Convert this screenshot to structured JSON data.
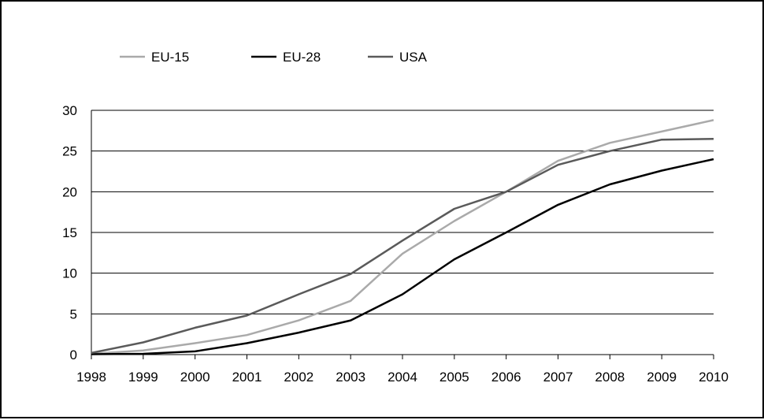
{
  "chart_data": {
    "type": "line",
    "title": "",
    "xlabel": "",
    "ylabel": "",
    "x": [
      1998,
      1999,
      2000,
      2001,
      2002,
      2003,
      2004,
      2005,
      2006,
      2007,
      2008,
      2009,
      2010
    ],
    "x_tick_labels": [
      "1998",
      "1999",
      "2000",
      "2001",
      "2002",
      "2003",
      "2004",
      "2005",
      "2006",
      "2007",
      "2008",
      "2009",
      "2010"
    ],
    "y_tick_labels": [
      "0",
      "5",
      "10",
      "15",
      "20",
      "25",
      "30"
    ],
    "ylim": [
      0,
      30
    ],
    "grid": "horizontal",
    "legend_position": "top-left",
    "series": [
      {
        "name": "EU-15",
        "color": "#aaaaaa",
        "values": [
          0.1,
          0.5,
          1.4,
          2.4,
          4.2,
          6.6,
          12.4,
          16.4,
          20.0,
          23.8,
          26.0,
          27.4,
          28.8
        ]
      },
      {
        "name": "EU-28",
        "color": "#000000",
        "values": [
          0.05,
          0.1,
          0.4,
          1.4,
          2.7,
          4.2,
          7.4,
          11.7,
          15.0,
          18.4,
          20.9,
          22.6,
          24.0
        ]
      },
      {
        "name": "USA",
        "color": "#5a5a5a",
        "values": [
          0.2,
          1.5,
          3.3,
          4.8,
          7.4,
          9.9,
          14.0,
          17.9,
          20.0,
          23.3,
          25.0,
          26.4,
          26.5
        ]
      }
    ]
  }
}
